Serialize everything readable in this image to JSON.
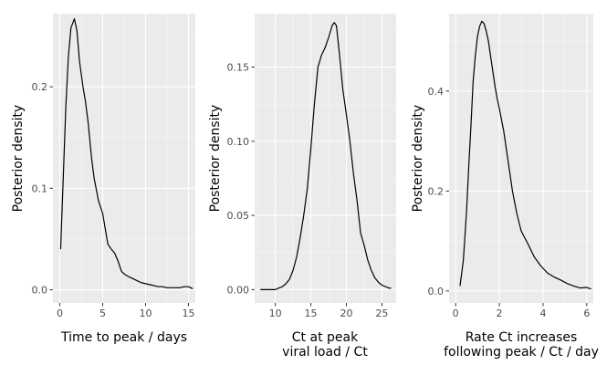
{
  "chart_data": [
    {
      "type": "line",
      "title": "",
      "xlabel": [
        "Time to peak / days"
      ],
      "ylabel": "Posterior density",
      "xlim": [
        -0.8,
        15.8
      ],
      "ylim": [
        -0.013,
        0.272
      ],
      "xticks": [
        0,
        5,
        10,
        15
      ],
      "xtick_labels": [
        "0",
        "5",
        "10",
        "15"
      ],
      "yticks": [
        0.0,
        0.1,
        0.2
      ],
      "ytick_labels": [
        "0.0",
        "0.1",
        "0.2"
      ],
      "grid": true,
      "series": [
        {
          "x": [
            0.1,
            0.4,
            0.7,
            1.0,
            1.3,
            1.7,
            2.0,
            2.3,
            2.7,
            3.0,
            3.3,
            3.7,
            4.0,
            4.5,
            5.0,
            5.3,
            5.6,
            6.0,
            6.4,
            6.8,
            7.2,
            7.6,
            8.0,
            8.5,
            9.0,
            9.5,
            10.0,
            10.5,
            11.0,
            11.5,
            12.0,
            12.5,
            13.0,
            13.5,
            14.0,
            14.5,
            15.0,
            15.5
          ],
          "y": [
            0.04,
            0.11,
            0.18,
            0.23,
            0.258,
            0.267,
            0.255,
            0.225,
            0.2,
            0.185,
            0.165,
            0.13,
            0.11,
            0.088,
            0.075,
            0.06,
            0.045,
            0.04,
            0.036,
            0.028,
            0.018,
            0.015,
            0.013,
            0.011,
            0.009,
            0.007,
            0.006,
            0.005,
            0.004,
            0.003,
            0.003,
            0.002,
            0.002,
            0.002,
            0.002,
            0.003,
            0.003,
            0.001
          ]
        }
      ]
    },
    {
      "type": "line",
      "title": "",
      "xlabel": [
        "Ct at peak",
        "viral load / Ct"
      ],
      "ylabel": "Posterior density",
      "xlim": [
        7.1,
        27.0
      ],
      "ylim": [
        -0.009,
        0.186
      ],
      "xticks": [
        10,
        15,
        20,
        25
      ],
      "xtick_labels": [
        "10",
        "15",
        "20",
        "25"
      ],
      "yticks": [
        0.0,
        0.05,
        0.1,
        0.15
      ],
      "ytick_labels": [
        "0.00",
        "0.05",
        "0.10",
        "0.15"
      ],
      "grid": true,
      "series": [
        {
          "x": [
            7.9,
            8.5,
            9.0,
            9.5,
            10.0,
            10.5,
            11.0,
            11.5,
            12.0,
            12.5,
            13.0,
            13.5,
            14.0,
            14.5,
            15.0,
            15.5,
            16.0,
            16.5,
            17.0,
            17.5,
            18.0,
            18.3,
            18.6,
            19.0,
            19.5,
            20.0,
            20.5,
            21.0,
            21.5,
            22.0,
            22.5,
            23.0,
            23.5,
            24.0,
            24.5,
            25.0,
            25.5,
            26.0,
            26.3
          ],
          "y": [
            0.0,
            0.0,
            0.0,
            0.0,
            0.0,
            0.001,
            0.002,
            0.004,
            0.007,
            0.013,
            0.022,
            0.035,
            0.05,
            0.068,
            0.095,
            0.125,
            0.15,
            0.158,
            0.163,
            0.17,
            0.178,
            0.18,
            0.178,
            0.16,
            0.135,
            0.118,
            0.1,
            0.078,
            0.06,
            0.038,
            0.03,
            0.02,
            0.013,
            0.008,
            0.005,
            0.003,
            0.002,
            0.001,
            0.001
          ]
        }
      ]
    },
    {
      "type": "line",
      "title": "",
      "xlabel": [
        "Rate Ct increases",
        "following peak / Ct / day"
      ],
      "ylabel": "Posterior density",
      "xlim": [
        -0.3,
        6.3
      ],
      "ylim": [
        -0.024,
        0.555
      ],
      "xticks": [
        0,
        2,
        4,
        6
      ],
      "xtick_labels": [
        "0",
        "2",
        "4",
        "6"
      ],
      "yticks": [
        0.0,
        0.2,
        0.4
      ],
      "ytick_labels": [
        "0.0",
        "0.2",
        "0.4"
      ],
      "grid": true,
      "series": [
        {
          "x": [
            0.2,
            0.35,
            0.5,
            0.6,
            0.7,
            0.8,
            0.9,
            1.0,
            1.1,
            1.2,
            1.3,
            1.4,
            1.5,
            1.6,
            1.7,
            1.8,
            1.9,
            2.0,
            2.2,
            2.4,
            2.6,
            2.8,
            3.0,
            3.3,
            3.6,
            3.9,
            4.2,
            4.5,
            4.8,
            5.1,
            5.4,
            5.7,
            6.0,
            6.2
          ],
          "y": [
            0.01,
            0.06,
            0.16,
            0.25,
            0.33,
            0.42,
            0.47,
            0.51,
            0.53,
            0.54,
            0.535,
            0.52,
            0.5,
            0.47,
            0.44,
            0.41,
            0.385,
            0.365,
            0.32,
            0.26,
            0.2,
            0.155,
            0.12,
            0.095,
            0.068,
            0.05,
            0.036,
            0.028,
            0.022,
            0.015,
            0.01,
            0.006,
            0.007,
            0.004
          ]
        }
      ]
    }
  ]
}
